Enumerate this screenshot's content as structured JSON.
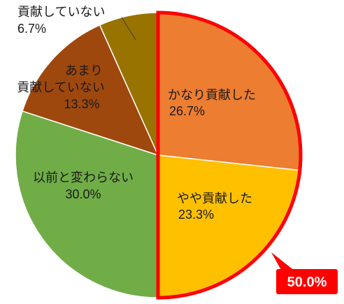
{
  "chart_data": {
    "type": "pie",
    "slices": [
      {
        "label_lines": [
          "かなり貢献した"
        ],
        "value": 26.7,
        "value_label": "26.7%",
        "color": "#ED7D31"
      },
      {
        "label_lines": [
          "やや貢献した"
        ],
        "value": 23.3,
        "value_label": "23.3%",
        "color": "#FFC000"
      },
      {
        "label_lines": [
          "以前と変わらない"
        ],
        "value": 30.0,
        "value_label": "30.0%",
        "color": "#70AD47"
      },
      {
        "label_lines": [
          "あまり",
          "貢献していない"
        ],
        "value": 13.3,
        "value_label": "13.3%",
        "color": "#9E480E"
      },
      {
        "label_lines": [
          "貢献していない"
        ],
        "value": 6.7,
        "value_label": "6.7%",
        "color": "#997300"
      }
    ],
    "highlight": {
      "slices": [
        0,
        1
      ],
      "value_label": "50.0%",
      "outline_color": "#FF0000",
      "callout_color": "#FF0000",
      "callout_text_color": "#FFFFFF"
    }
  }
}
